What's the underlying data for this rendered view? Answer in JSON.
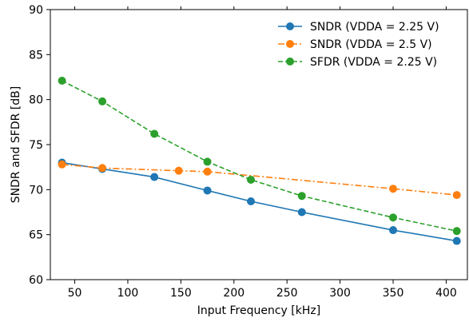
{
  "chart_data": {
    "type": "line",
    "title": "",
    "xlabel": "Input Frequency [kHz]",
    "ylabel": "SNDR and SFDR [dB]",
    "xlim": [
      27,
      420
    ],
    "ylim": [
      60,
      90
    ],
    "xticks": [
      50,
      100,
      150,
      200,
      250,
      300,
      350,
      400
    ],
    "yticks": [
      60,
      65,
      70,
      75,
      80,
      85,
      90
    ],
    "grid": false,
    "legend_position": "top-right",
    "series": [
      {
        "name": "SNDR (VDDA = 2.25 V)",
        "color": "#1f77b4",
        "linestyle": "solid",
        "x": [
          38,
          76,
          125,
          175,
          216,
          264,
          350,
          410
        ],
        "y": [
          73.0,
          72.3,
          71.4,
          69.9,
          68.7,
          67.5,
          65.5,
          64.3
        ]
      },
      {
        "name": "SNDR (VDDA = 2.5 V)",
        "color": "#ff7f0e",
        "linestyle": "dashdot",
        "x": [
          38,
          76,
          148,
          175,
          350,
          410
        ],
        "y": [
          72.8,
          72.4,
          72.1,
          72.0,
          70.1,
          69.4
        ]
      },
      {
        "name": "SFDR (VDDA = 2.25 V)",
        "color": "#2ca02c",
        "linestyle": "dashed",
        "x": [
          38,
          76,
          125,
          175,
          216,
          264,
          350,
          410
        ],
        "y": [
          82.1,
          79.8,
          76.2,
          73.1,
          71.1,
          69.3,
          66.9,
          65.4
        ]
      }
    ]
  }
}
